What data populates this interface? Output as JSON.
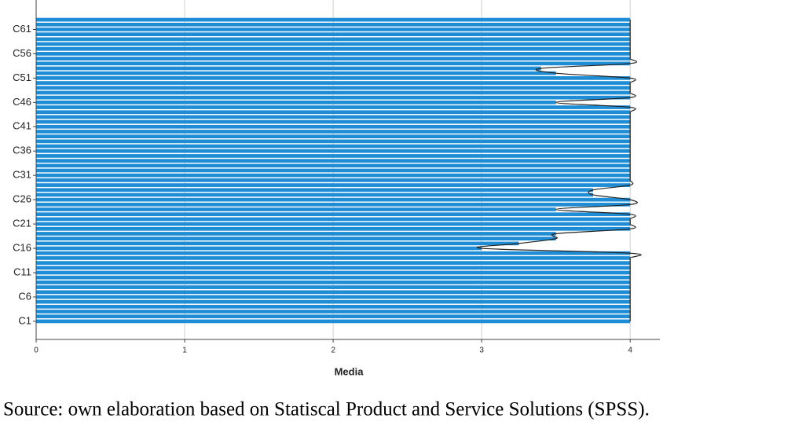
{
  "chart_data": {
    "type": "bar",
    "orientation": "horizontal",
    "x_label": "Media",
    "caption": "Source: own elaboration based on Statiscal Product and Service Solutions (SPSS).",
    "categories": [
      "C1",
      null,
      null,
      null,
      null,
      "C6",
      null,
      null,
      null,
      null,
      "C11",
      null,
      null,
      null,
      null,
      "C16",
      null,
      null,
      null,
      null,
      "C21",
      null,
      null,
      null,
      null,
      "C26",
      null,
      null,
      null,
      null,
      "C31",
      null,
      null,
      null,
      null,
      "C36",
      null,
      null,
      null,
      null,
      "C41",
      null,
      null,
      null,
      null,
      "C46",
      null,
      null,
      null,
      null,
      "C51",
      null,
      null,
      null,
      null,
      "C56",
      null,
      null,
      null,
      null,
      "C61",
      null,
      null
    ],
    "values": [
      4,
      4,
      4,
      4,
      4,
      4,
      4,
      4,
      4,
      4,
      4,
      4,
      4,
      4,
      4,
      3,
      3.25,
      3.5,
      3.5,
      4,
      4,
      4,
      4,
      3.5,
      4,
      4,
      3.75,
      3.75,
      4,
      4,
      4,
      4,
      4,
      4,
      4,
      4,
      4,
      4,
      4,
      4,
      4,
      4,
      4,
      4,
      4,
      3.5,
      4,
      4,
      4,
      4,
      4,
      3.5,
      3.4,
      4,
      4,
      4,
      4,
      4,
      4,
      4,
      4,
      4,
      4
    ],
    "color": "#1f8dd6",
    "xlim": [
      0,
      4.2
    ],
    "xticks": [
      0,
      1,
      2,
      3,
      4
    ],
    "grid": true
  }
}
